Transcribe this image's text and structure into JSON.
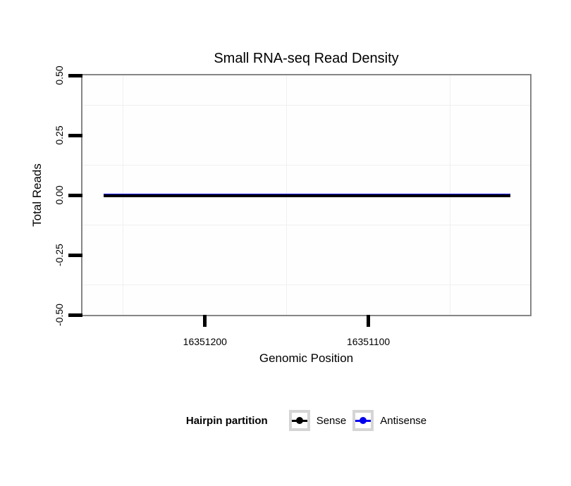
{
  "chart_data": {
    "type": "line",
    "title": "Small RNA-seq Read Density",
    "xlabel": "Genomic Position",
    "ylabel": "Total Reads",
    "x_axis": {
      "reversed": true,
      "range": [
        16351275,
        16351001
      ],
      "ticks": [
        {
          "value": 16351200,
          "label": "16351200"
        },
        {
          "value": 16351100,
          "label": "16351100"
        }
      ],
      "minor_gridlines": [
        16351250,
        16351150,
        16351050
      ]
    },
    "y_axis": {
      "range": [
        -0.5,
        0.5
      ],
      "ticks": [
        {
          "value": 0.5,
          "label": "0.50"
        },
        {
          "value": 0.25,
          "label": "0.25"
        },
        {
          "value": 0.0,
          "label": "0.00"
        },
        {
          "value": -0.25,
          "label": "-0.25"
        },
        {
          "value": -0.5,
          "label": "-0.50"
        }
      ],
      "minor_gridlines": [
        0.375,
        0.125,
        -0.125,
        -0.375
      ]
    },
    "series": [
      {
        "name": "Sense",
        "color": "#000000",
        "x": [
          16351262,
          16351013
        ],
        "y": [
          0,
          0
        ]
      },
      {
        "name": "Antisense",
        "color": "#0000EE",
        "x": [
          16351262,
          16351013
        ],
        "y": [
          0,
          0
        ]
      }
    ],
    "legend": {
      "title": "Hairpin partition",
      "position": "bottom",
      "entries": [
        {
          "label": "Sense",
          "color": "#000000"
        },
        {
          "label": "Antisense",
          "color": "#0000EE"
        }
      ]
    },
    "grid": "minor-only",
    "colors": {
      "panel_border": "#868686",
      "tick": "#000000",
      "minor_grid": "#f0f0f0",
      "legend_key_border": "#d5d5d5",
      "legend_key_bg": "#ffffff"
    }
  }
}
